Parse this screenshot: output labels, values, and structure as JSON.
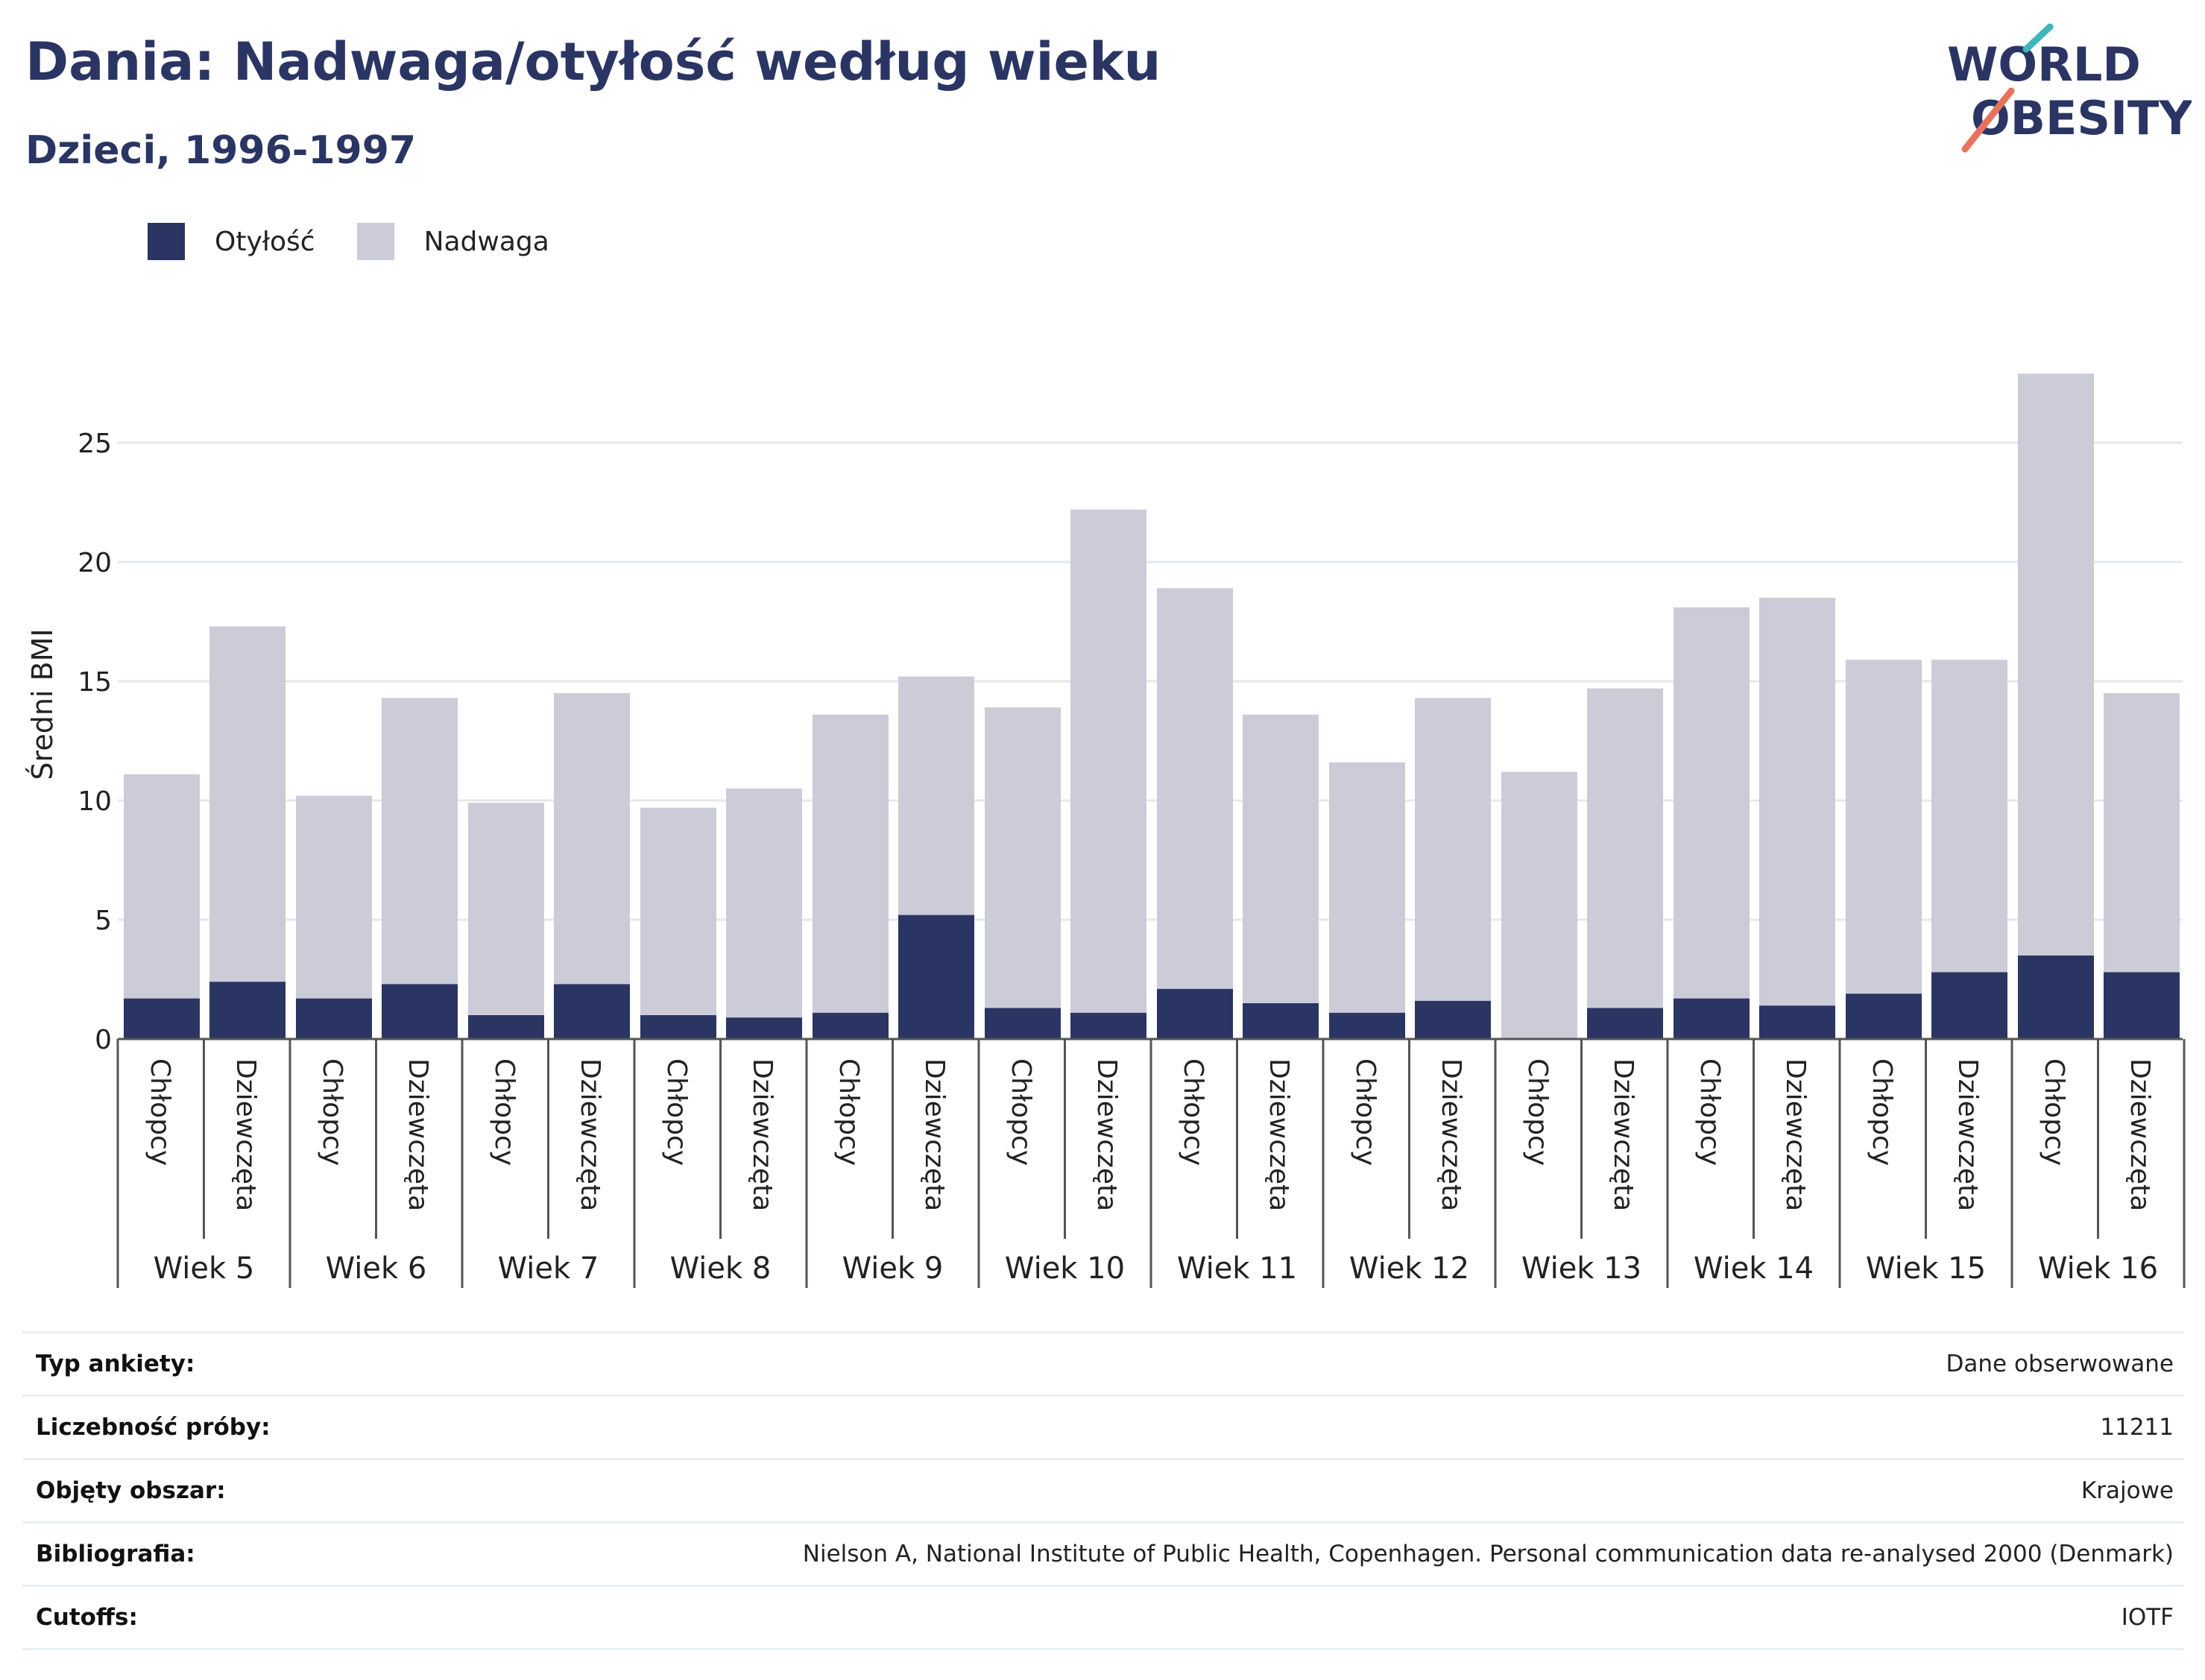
{
  "header": {
    "title": "Dania: Nadwaga/otyłość według wieku",
    "subtitle": "Dzieci, 1996-1997"
  },
  "logo": {
    "line1": "WORLD",
    "line2": "OBESITY",
    "accent_colors": [
      "#3fb6b8",
      "#e8735d"
    ]
  },
  "legend": [
    {
      "label": "Otyłość",
      "color": "#2a3564"
    },
    {
      "label": "Nadwaga",
      "color": "#cbccd8"
    }
  ],
  "chart_data": {
    "type": "bar",
    "stacked": true,
    "ylabel": "Średni BMI",
    "xlabel": "",
    "ylim": [
      0,
      28
    ],
    "yticks": [
      0,
      5,
      10,
      15,
      20,
      25
    ],
    "grid": true,
    "legend_position": "top-left",
    "groups": [
      "Wiek 5",
      "Wiek 6",
      "Wiek 7",
      "Wiek 8",
      "Wiek 9",
      "Wiek 10",
      "Wiek 11",
      "Wiek 12",
      "Wiek 13",
      "Wiek 14",
      "Wiek 15",
      "Wiek 16"
    ],
    "subcategories": [
      "Chłopcy",
      "Dziewczęta"
    ],
    "series": [
      {
        "name": "Otyłość",
        "color": "#2a3564",
        "values": [
          1.7,
          2.4,
          1.7,
          2.3,
          1.0,
          2.3,
          1.0,
          0.9,
          1.1,
          5.2,
          1.3,
          1.1,
          2.1,
          1.5,
          1.1,
          1.6,
          0.0,
          1.3,
          1.7,
          1.4,
          1.9,
          2.8,
          3.5,
          2.8
        ]
      },
      {
        "name": "Nadwaga",
        "color": "#cbccd8",
        "values": [
          9.4,
          14.9,
          8.5,
          12.0,
          8.9,
          12.2,
          8.7,
          9.6,
          12.5,
          10.0,
          12.6,
          21.1,
          16.8,
          12.1,
          10.5,
          12.7,
          11.2,
          13.4,
          16.4,
          17.1,
          14.0,
          13.1,
          24.4,
          11.7
        ]
      }
    ]
  },
  "info_table": [
    {
      "label": "Typ ankiety:",
      "value": "Dane obserwowane"
    },
    {
      "label": "Liczebność próby:",
      "value": "11211"
    },
    {
      "label": "Objęty obszar:",
      "value": "Krajowe"
    },
    {
      "label": "Bibliografia:",
      "value": "Nielson A, National Institute of Public Health, Copenhagen. Personal communication data re-analysed 2000 (Denmark)"
    },
    {
      "label": "Cutoffs:",
      "value": "IOTF"
    }
  ]
}
